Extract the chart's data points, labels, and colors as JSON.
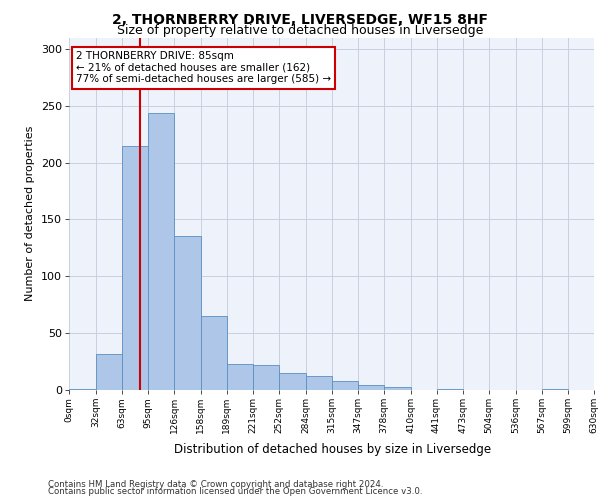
{
  "title1": "2, THORNBERRY DRIVE, LIVERSEDGE, WF15 8HF",
  "title2": "Size of property relative to detached houses in Liversedge",
  "xlabel": "Distribution of detached houses by size in Liversedge",
  "ylabel": "Number of detached properties",
  "bin_edges": [
    0,
    32,
    63,
    95,
    126,
    158,
    189,
    221,
    252,
    284,
    315,
    347,
    378,
    410,
    441,
    473,
    504,
    536,
    567,
    599,
    630
  ],
  "bar_heights": [
    1,
    32,
    215,
    244,
    135,
    65,
    23,
    22,
    15,
    12,
    8,
    4,
    3,
    0,
    1,
    0,
    0,
    0,
    1,
    0
  ],
  "bar_color": "#aec6e8",
  "bar_edge_color": "#5a8fc2",
  "vline_x": 85,
  "vline_color": "#cc0000",
  "annotation_text": "2 THORNBERRY DRIVE: 85sqm\n← 21% of detached houses are smaller (162)\n77% of semi-detached houses are larger (585) →",
  "annotation_box_color": "white",
  "annotation_box_edge_color": "#cc0000",
  "ylim": [
    0,
    310
  ],
  "yticks": [
    0,
    50,
    100,
    150,
    200,
    250,
    300
  ],
  "tick_labels": [
    "0sqm",
    "32sqm",
    "63sqm",
    "95sqm",
    "126sqm",
    "158sqm",
    "189sqm",
    "221sqm",
    "252sqm",
    "284sqm",
    "315sqm",
    "347sqm",
    "378sqm",
    "410sqm",
    "441sqm",
    "473sqm",
    "504sqm",
    "536sqm",
    "567sqm",
    "599sqm",
    "630sqm"
  ],
  "footer1": "Contains HM Land Registry data © Crown copyright and database right 2024.",
  "footer2": "Contains public sector information licensed under the Open Government Licence v3.0.",
  "bg_color": "#eef2fb",
  "grid_color": "#c8cfe0",
  "title1_fontsize": 10,
  "title2_fontsize": 9
}
